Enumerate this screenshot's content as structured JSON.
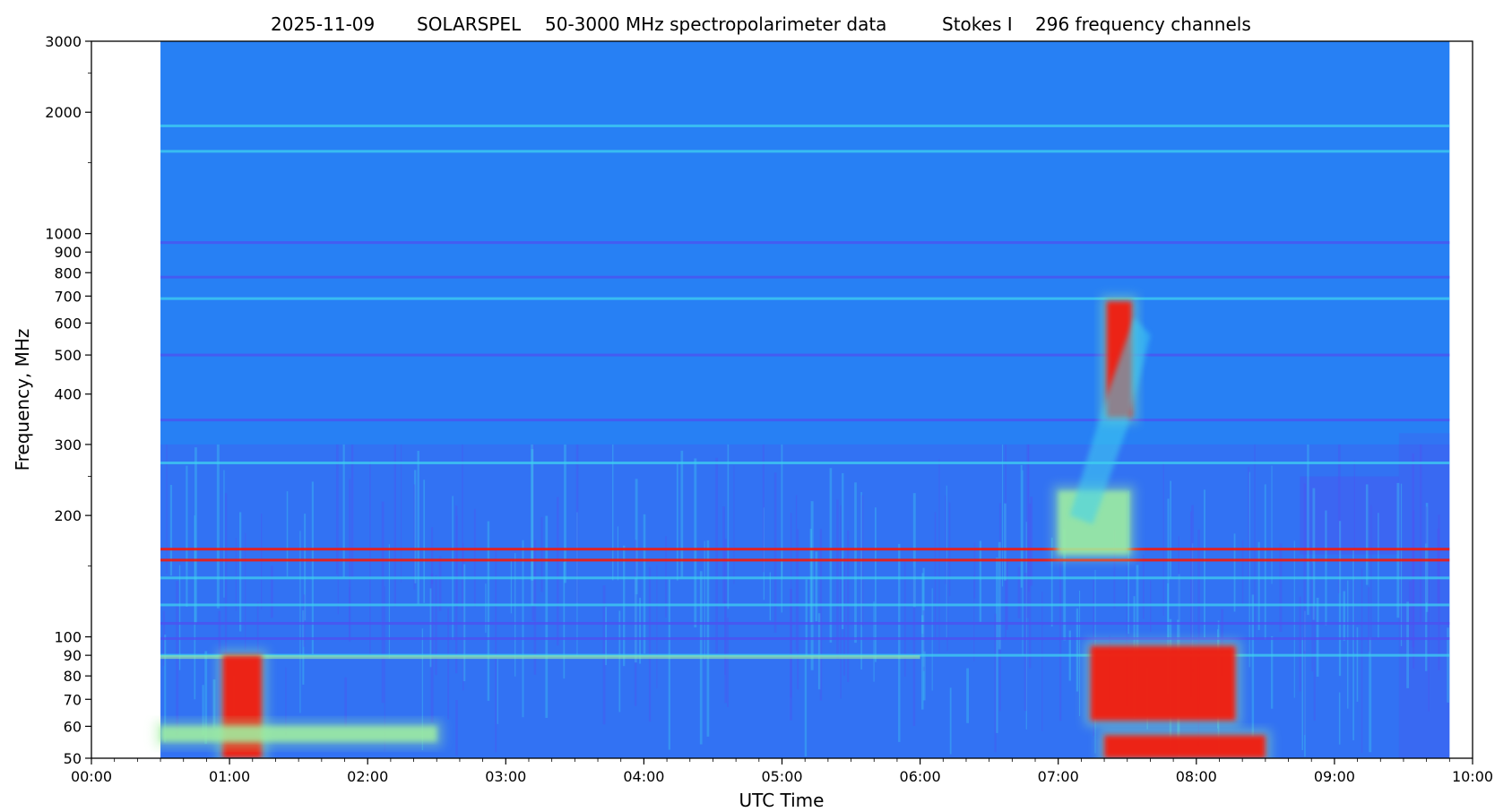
{
  "title": {
    "date": "2025-11-09",
    "instrument": "SOLARSPEL",
    "description": "50-3000 MHz spectropolarimeter data",
    "stokes": "Stokes I",
    "channels": "296 frequency channels"
  },
  "colors": {
    "background_blue": "#2780f4",
    "low_purple": "#4f50f0",
    "mid_cyan": "#3fd0f0",
    "green": "#a0f0a0",
    "hot_red": "#f41a0c"
  },
  "chart_data": {
    "type": "heatmap",
    "xlabel": "UTC Time",
    "ylabel": "Frequency, MHz",
    "xlim": [
      "00:00",
      "10:00"
    ],
    "ylim": [
      50,
      3000
    ],
    "yscale": "log",
    "x_ticks": [
      "00:00",
      "01:00",
      "02:00",
      "03:00",
      "04:00",
      "05:00",
      "06:00",
      "07:00",
      "08:00",
      "09:00",
      "10:00"
    ],
    "y_ticks": [
      "50",
      "60",
      "70",
      "80",
      "90",
      "100",
      "200",
      "300",
      "400",
      "500",
      "600",
      "700",
      "800",
      "900",
      "1000",
      "2000",
      "3000"
    ],
    "data_extent": {
      "start": "00:30",
      "end": "09:50"
    },
    "horizontal_lines": [
      {
        "freq": 1850,
        "kind": "cyan"
      },
      {
        "freq": 1600,
        "kind": "cyan"
      },
      {
        "freq": 950,
        "kind": "purple"
      },
      {
        "freq": 780,
        "kind": "purple"
      },
      {
        "freq": 690,
        "kind": "cyan"
      },
      {
        "freq": 500,
        "kind": "purple"
      },
      {
        "freq": 345,
        "kind": "purple"
      },
      {
        "freq": 270,
        "kind": "cyan"
      },
      {
        "freq": 165,
        "kind": "red"
      },
      {
        "freq": 155,
        "kind": "red"
      },
      {
        "freq": 140,
        "kind": "cyan"
      },
      {
        "freq": 120,
        "kind": "cyan"
      },
      {
        "freq": 108,
        "kind": "purple"
      },
      {
        "freq": 99,
        "kind": "purple"
      },
      {
        "freq": 90,
        "kind": "cyan"
      }
    ],
    "events": [
      {
        "kind": "red",
        "t0": "07:21",
        "t1": "07:32",
        "f0": 350,
        "f1": 680
      },
      {
        "kind": "green",
        "t0": "07:00",
        "t1": "07:31",
        "f0": 160,
        "f1": 230
      },
      {
        "kind": "red",
        "t0": "07:14",
        "t1": "08:17",
        "f0": 62,
        "f1": 95
      },
      {
        "kind": "red",
        "t0": "07:20",
        "t1": "08:30",
        "f0": 50,
        "f1": 57
      },
      {
        "kind": "red",
        "t0": "00:57",
        "t1": "01:14",
        "f0": 50,
        "f1": 90
      },
      {
        "kind": "green",
        "t0": "00:30",
        "t1": "02:30",
        "f0": 55,
        "f1": 60
      }
    ]
  }
}
